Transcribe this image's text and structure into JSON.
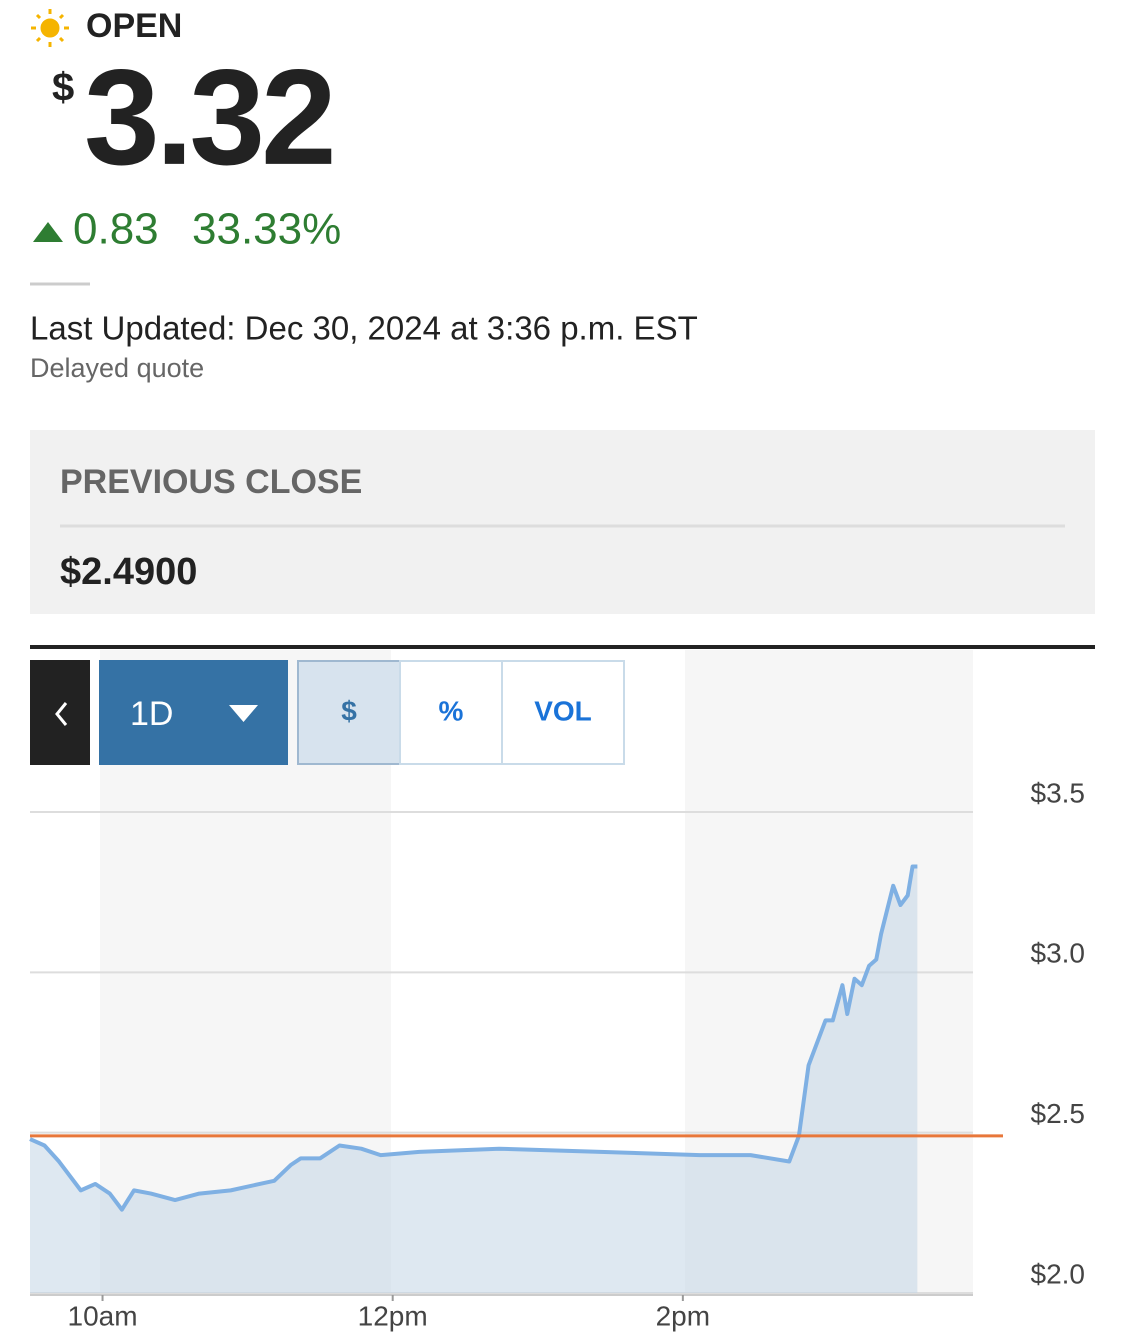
{
  "header": {
    "status": "OPEN",
    "currency": "$",
    "price": "3.32",
    "change": "0.83",
    "change_percent": "33.33%",
    "last_updated": "Last Updated: Dec 30, 2024 at 3:36 p.m. EST",
    "quote_type": "Delayed quote"
  },
  "previous_close": {
    "label": "PREVIOUS CLOSE",
    "value": "$2.4900"
  },
  "controls": {
    "period": "1D",
    "modes": [
      "$",
      "%",
      "VOL"
    ],
    "selected_mode_index": 0
  },
  "chart_data": {
    "type": "line",
    "x": [
      570,
      576,
      582,
      591,
      597,
      603,
      608,
      613,
      620,
      630,
      640,
      653,
      665,
      671,
      678,
      682,
      690,
      698,
      707,
      715,
      731,
      764,
      806,
      847,
      868,
      884,
      888,
      892,
      896,
      899,
      902,
      906,
      908,
      911,
      914,
      917,
      920,
      922,
      927,
      930,
      933,
      935,
      937
    ],
    "series": [
      {
        "color": "#7fb0e3",
        "values": [
          2.48,
          2.46,
          2.41,
          2.32,
          2.34,
          2.31,
          2.26,
          2.32,
          2.31,
          2.29,
          2.31,
          2.32,
          2.34,
          2.35,
          2.4,
          2.42,
          2.42,
          2.46,
          2.45,
          2.43,
          2.44,
          2.45,
          2.44,
          2.43,
          2.43,
          2.41,
          2.49,
          2.71,
          2.79,
          2.85,
          2.85,
          2.96,
          2.87,
          2.98,
          2.96,
          3.02,
          3.04,
          3.12,
          3.27,
          3.21,
          3.24,
          3.33,
          3.33
        ]
      }
    ],
    "xlim": [
      570,
      960
    ],
    "xticks": [
      {
        "value": 600,
        "label": "10am"
      },
      {
        "value": 720,
        "label": "12pm"
      },
      {
        "value": 840,
        "label": "2pm"
      }
    ],
    "ylim": [
      2.0,
      3.5
    ],
    "yticks": [
      {
        "value": 2.0,
        "label": "$2.0"
      },
      {
        "value": 2.5,
        "label": "$2.5"
      },
      {
        "value": 3.0,
        "label": "$3.0"
      },
      {
        "value": 3.5,
        "label": "$3.5"
      }
    ],
    "reference_line": 2.49,
    "reference_color": "#e8773a",
    "grid": true
  }
}
